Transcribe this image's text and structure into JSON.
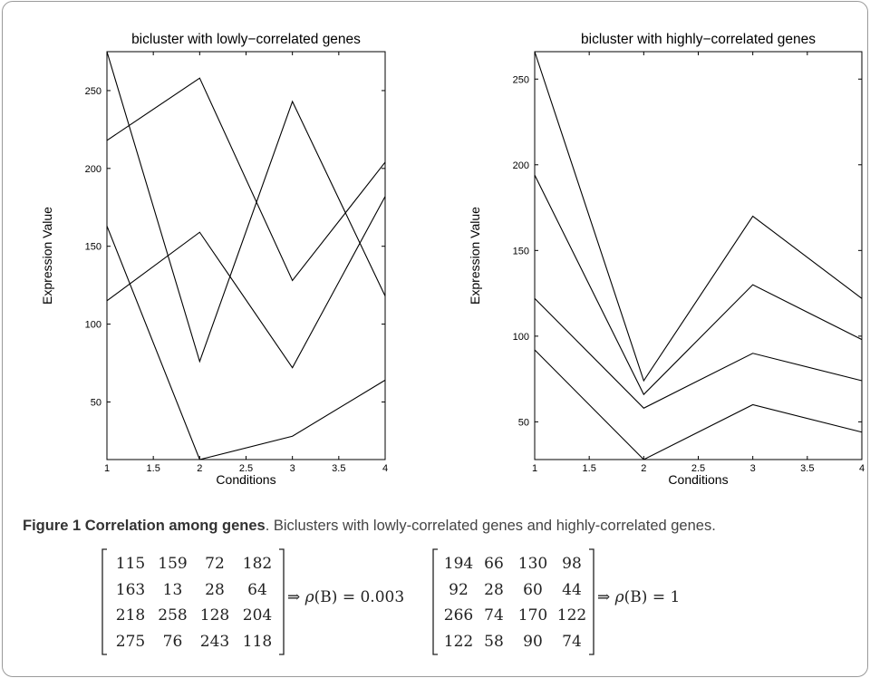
{
  "chart_data": [
    {
      "type": "line",
      "title": "bicluster with lowly−correlated genes",
      "xlabel": "Conditions",
      "ylabel": "Expression Value",
      "x": [
        1,
        2,
        3,
        4
      ],
      "xlim": [
        1,
        4
      ],
      "ylim": [
        13,
        275
      ],
      "xticks": [
        "1",
        "1.5",
        "2",
        "2.5",
        "3",
        "3.5",
        "4"
      ],
      "yticks": [
        "50",
        "100",
        "150",
        "200",
        "250"
      ],
      "grid": false,
      "series": [
        {
          "values": [
            115,
            159,
            72,
            182
          ]
        },
        {
          "values": [
            163,
            13,
            28,
            64
          ]
        },
        {
          "values": [
            218,
            258,
            128,
            204
          ]
        },
        {
          "values": [
            275,
            76,
            243,
            118
          ]
        }
      ]
    },
    {
      "type": "line",
      "title": "bicluster with highly−correlated genes",
      "xlabel": "Conditions",
      "ylabel": "Expression Value",
      "x": [
        1,
        2,
        3,
        4
      ],
      "xlim": [
        1,
        4
      ],
      "ylim": [
        28,
        266
      ],
      "xticks": [
        "1",
        "1.5",
        "2",
        "2.5",
        "3",
        "3.5",
        "4"
      ],
      "yticks": [
        "50",
        "100",
        "150",
        "200",
        "250"
      ],
      "grid": false,
      "series": [
        {
          "values": [
            194,
            66,
            130,
            98
          ]
        },
        {
          "values": [
            92,
            28,
            60,
            44
          ]
        },
        {
          "values": [
            266,
            74,
            170,
            122
          ]
        },
        {
          "values": [
            122,
            58,
            90,
            74
          ]
        }
      ]
    }
  ],
  "caption": {
    "lead": "Figure 1 Correlation among genes",
    "text": ". Biclusters with lowly-correlated genes and highly-correlated genes."
  },
  "matrices": [
    {
      "rows": [
        [
          "115",
          "159",
          "72",
          "182"
        ],
        [
          "163",
          "13",
          "28",
          "64"
        ],
        [
          "218",
          "258",
          "128",
          "204"
        ],
        [
          "275",
          "76",
          "243",
          "118"
        ]
      ],
      "result": "0.003"
    },
    {
      "rows": [
        [
          "194",
          "66",
          "130",
          "98"
        ],
        [
          "92",
          "28",
          "60",
          "44"
        ],
        [
          "266",
          "74",
          "170",
          "122"
        ],
        [
          "122",
          "58",
          "90",
          "74"
        ]
      ],
      "result": "1"
    }
  ],
  "math": {
    "implies": "⇒",
    "rho": "ρ",
    "arg": "(B)",
    "equals": " = "
  },
  "colors": {
    "line": "#000000",
    "frame": "#9a9a9a",
    "caption": "#444444"
  }
}
